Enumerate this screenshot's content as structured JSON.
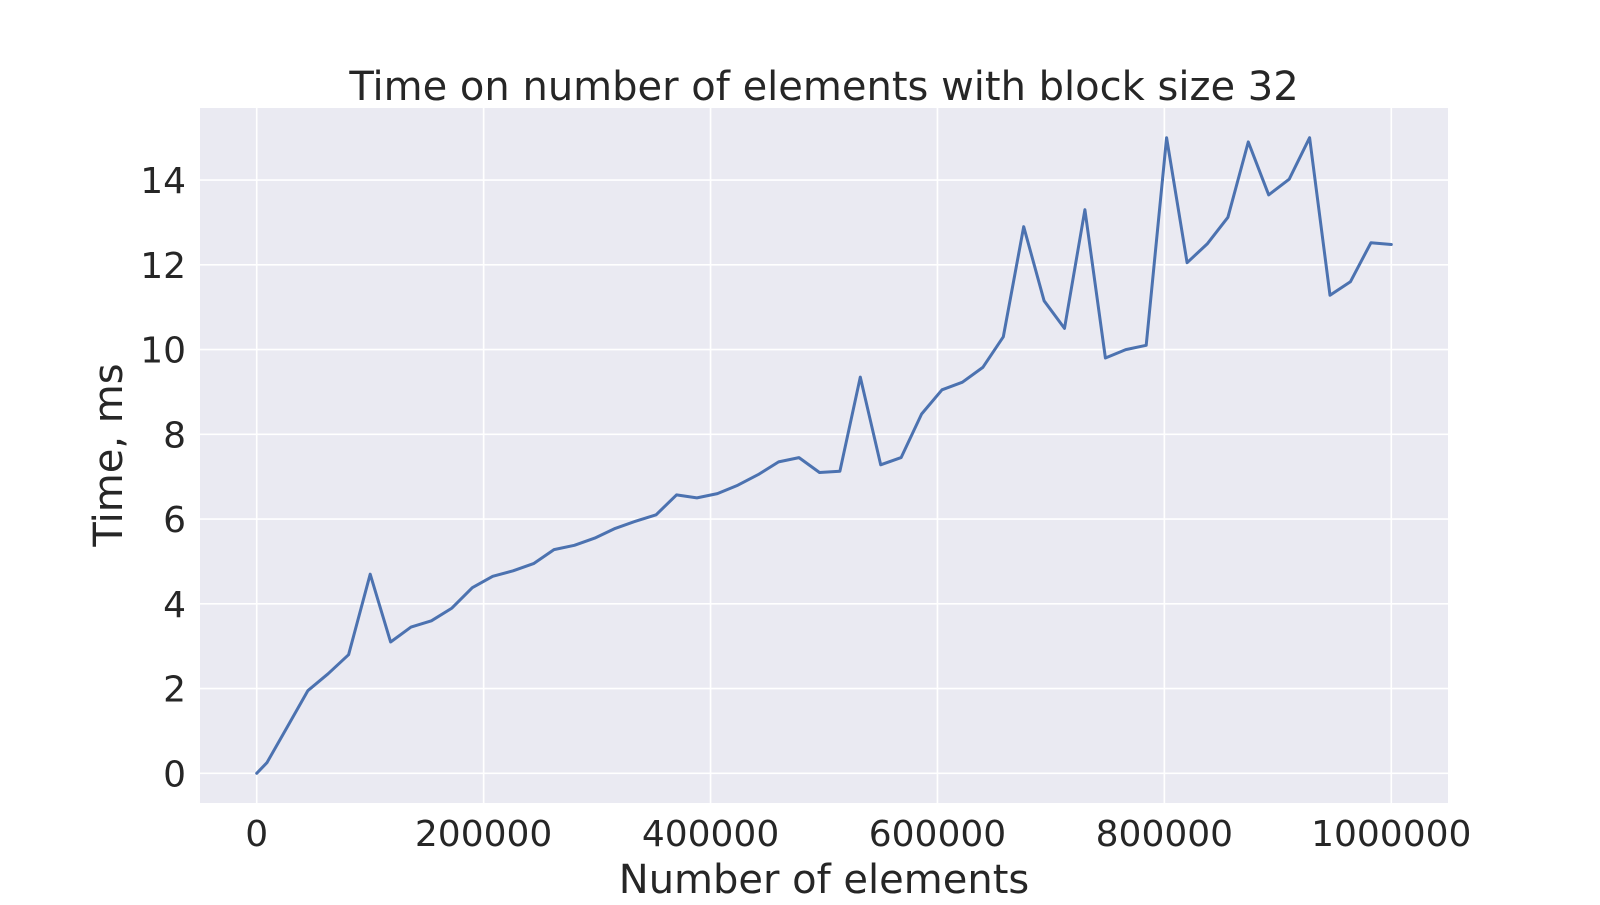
{
  "chart_data": {
    "type": "line",
    "title": "Time on number of elements with block size 32",
    "xlabel": "Number of elements",
    "ylabel": "Time, ms",
    "xlim": [
      -50000,
      1050000
    ],
    "ylim": [
      -0.7,
      15.7
    ],
    "xticks": [
      0,
      200000,
      400000,
      600000,
      800000,
      1000000
    ],
    "xtick_labels": [
      "0",
      "200000",
      "400000",
      "600000",
      "800000",
      "1000000"
    ],
    "yticks": [
      0,
      2,
      4,
      6,
      8,
      10,
      12,
      14
    ],
    "ytick_labels": [
      "0",
      "2",
      "4",
      "6",
      "8",
      "10",
      "12",
      "14"
    ],
    "grid": true,
    "colors": {
      "background": "#eaeaf2",
      "grid": "#ffffff",
      "line": "#4c72b0",
      "text": "#262626"
    },
    "series": [
      {
        "x": [
          0,
          9000,
          27000,
          45000,
          63000,
          81000,
          100000,
          118000,
          136000,
          154000,
          172000,
          190000,
          208000,
          226000,
          244000,
          262000,
          280000,
          298000,
          316000,
          334000,
          352000,
          370000,
          388000,
          406000,
          424000,
          442000,
          460000,
          478000,
          496000,
          514000,
          532000,
          550000,
          568000,
          586000,
          604000,
          622000,
          640000,
          658000,
          676000,
          694000,
          712000,
          730000,
          748000,
          766000,
          784000,
          802000,
          820000,
          838000,
          856000,
          874000,
          892000,
          910000,
          928000,
          946000,
          964000,
          982000,
          1000000
        ],
        "y": [
          0.0,
          0.25,
          1.1,
          1.95,
          2.35,
          2.8,
          4.7,
          3.1,
          3.45,
          3.6,
          3.9,
          4.38,
          4.65,
          4.78,
          4.95,
          5.28,
          5.38,
          5.55,
          5.78,
          5.95,
          6.1,
          6.57,
          6.5,
          6.6,
          6.8,
          7.05,
          7.35,
          7.45,
          7.1,
          7.13,
          9.35,
          7.28,
          7.45,
          8.48,
          9.05,
          9.23,
          9.58,
          10.3,
          12.9,
          11.15,
          10.5,
          13.3,
          9.8,
          10.0,
          10.1,
          15.0,
          12.05,
          12.5,
          13.12,
          14.9,
          13.65,
          14.02,
          15.0,
          11.28,
          11.6,
          12.52,
          12.48
        ]
      }
    ]
  }
}
